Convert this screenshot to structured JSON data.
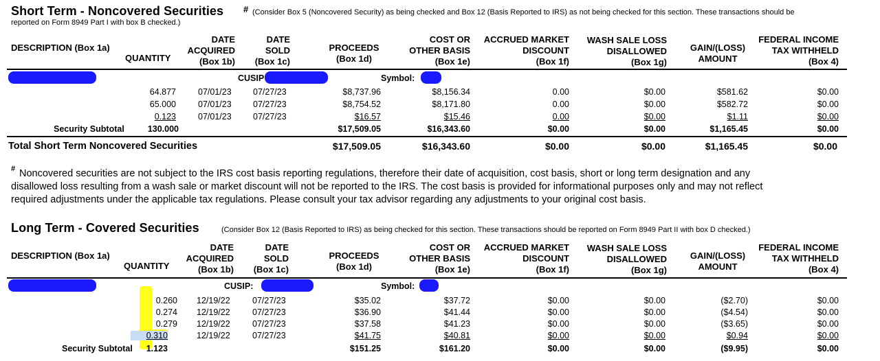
{
  "colors": {
    "redaction": "#1a1aff",
    "highlight": "#ffff1a"
  },
  "short": {
    "title": "Short Term - Noncovered Securities",
    "marker": "#",
    "note_line1": "(Consider Box 5 (Noncovered Security) as being checked and Box 12 (Basis Reported to IRS) as not being checked for this section. These transactions should be",
    "note_line2": "reported on Form 8949 Part I with box B checked.)",
    "cusip_label": "CUSIP",
    "symbol_label": "Symbol:",
    "rows": [
      [
        "64.877",
        "07/01/23",
        "07/27/23",
        "$8,737.96",
        "$8,156.34",
        "0.00",
        "$0.00",
        "$581.62",
        "$0.00"
      ],
      [
        "65.000",
        "07/01/23",
        "07/27/23",
        "$8,754.52",
        "$8,171.80",
        "0.00",
        "$0.00",
        "$582.72",
        "$0.00"
      ],
      [
        "0.123",
        "07/01/23",
        "07/27/23",
        "$16.57",
        "$15.46",
        "0.00",
        "$0.00",
        "$1.11",
        "$0.00"
      ]
    ],
    "subtotal_label": "Security Subtotal",
    "subtotal": [
      "130.000",
      "$17,509.05",
      "$16,343.60",
      "$0.00",
      "$0.00",
      "$1,165.45",
      "$0.00"
    ],
    "total_label": "Total Short Term Noncovered Securities",
    "total": [
      "$17,509.05",
      "$16,343.60",
      "$0.00",
      "$0.00",
      "$1,165.45",
      "$0.00"
    ]
  },
  "headers": {
    "description": "DESCRIPTION (Box 1a)",
    "quantity": "QUANTITY",
    "acq": [
      "DATE",
      "ACQUIRED",
      "(Box 1b)"
    ],
    "sold": [
      "DATE",
      "SOLD",
      "(Box 1c)"
    ],
    "proceeds": [
      "PROCEEDS",
      "(Box 1d)"
    ],
    "cost": [
      "COST OR",
      "OTHER BASIS",
      "(Box 1e)"
    ],
    "accrued": [
      "ACCRUED MARKET",
      "DISCOUNT",
      "(Box 1f)"
    ],
    "wash": [
      "WASH SALE LOSS",
      "DISALLOWED",
      "(Box 1g)"
    ],
    "gain": [
      "GAIN/(LOSS)",
      "AMOUNT"
    ],
    "fed": [
      "FEDERAL INCOME",
      "TAX WITHHELD",
      "(Box 4)"
    ]
  },
  "footnote": {
    "marker": "#",
    "line1": "Noncovered securities are not subject to the IRS cost basis reporting regulations, therefore their date of acquisition, cost basis, short or long term designation and any",
    "line2": "disallowed loss resulting from a wash sale or market discount  will not be reported to the IRS. The cost basis is provided for informational purposes only and may not reflect",
    "line3": "required adjustments under the applicable tax regulations.  Please consult your tax advisor regarding any adjustments to your original cost basis."
  },
  "long": {
    "title": "Long Term - Covered Securities",
    "note": "(Consider Box 12 (Basis Reported to IRS) as being checked for this section. These transactions should be reported on Form 8949 Part II with box D checked.)",
    "cusip_label": "CUSIP:",
    "symbol_label": "Symbol:",
    "rows": [
      [
        "0.260",
        "12/19/22",
        "07/27/23",
        "$35.02",
        "$37.72",
        "$0.00",
        "$0.00",
        "($2.70)",
        "$0.00"
      ],
      [
        "0.274",
        "12/19/22",
        "07/27/23",
        "$36.90",
        "$41.44",
        "$0.00",
        "$0.00",
        "($4.54)",
        "$0.00"
      ],
      [
        "0.279",
        "12/19/22",
        "07/27/23",
        "$37.58",
        "$41.23",
        "$0.00",
        "$0.00",
        "($3.65)",
        "$0.00"
      ],
      [
        "0.310",
        "12/19/22",
        "07/27/23",
        "$41.75",
        "$40.81",
        "$0.00",
        "$0.00",
        "$0.94",
        "$0.00"
      ]
    ],
    "subtotal_label": "Security Subtotal",
    "subtotal": [
      "1.123",
      "$151.25",
      "$161.20",
      "$0.00",
      "$0.00",
      "($9.95)",
      "$0.00"
    ]
  }
}
